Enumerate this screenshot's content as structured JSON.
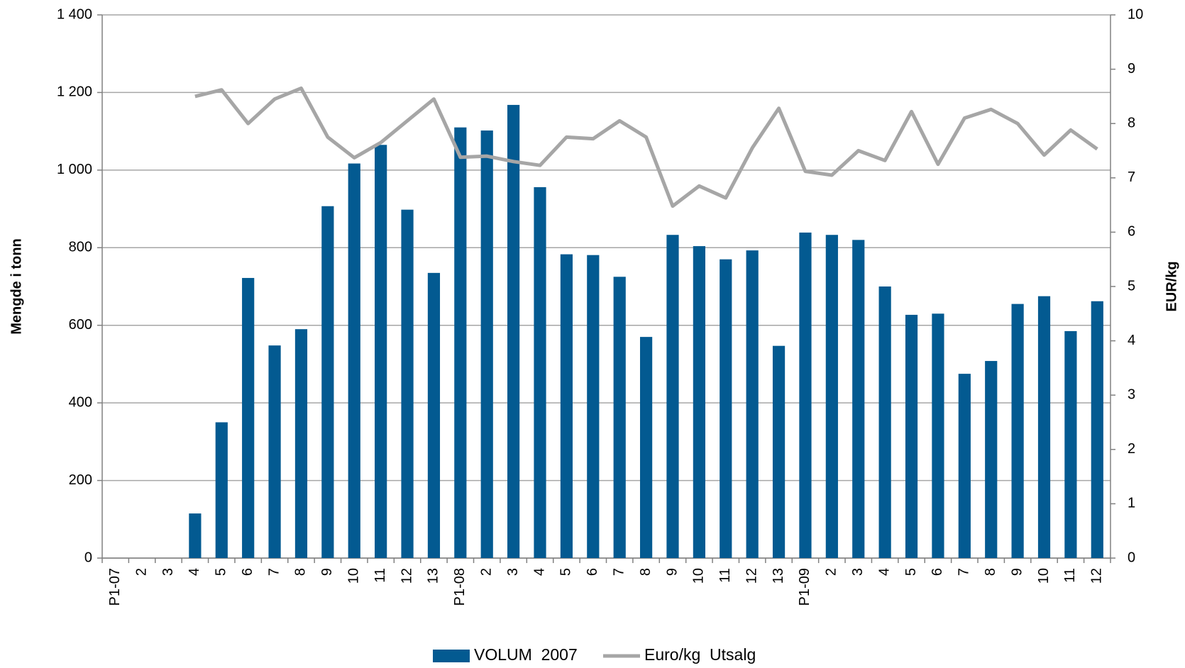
{
  "chart_data": {
    "type": "bar+line",
    "y_label": "Mengde i tonn",
    "y2_label": "EUR/kg",
    "categories": [
      "P1-07",
      "2",
      "3",
      "4",
      "5",
      "6",
      "7",
      "8",
      "9",
      "10",
      "11",
      "12",
      "13",
      "P1-08",
      "2",
      "3",
      "4",
      "5",
      "6",
      "7",
      "8",
      "9",
      "10",
      "11",
      "12",
      "13",
      "P1-09",
      "2",
      "3",
      "4",
      "5",
      "6",
      "7",
      "8",
      "9",
      "10",
      "11",
      "12"
    ],
    "series": [
      {
        "name": "VOLUM  2007",
        "type": "bar",
        "color": "#035a91",
        "values": [
          0,
          0,
          0,
          115,
          350,
          722,
          548,
          590,
          907,
          1017,
          1065,
          898,
          735,
          1110,
          1102,
          1168,
          956,
          783,
          781,
          725,
          570,
          833,
          804,
          770,
          793,
          547,
          839,
          833,
          820,
          700,
          627,
          630,
          475,
          508,
          655,
          675,
          585,
          662
        ]
      },
      {
        "name": "Euro/kg  Utsalg",
        "type": "line",
        "axis": "y2",
        "color": "#a6a6a6",
        "values": [
          null,
          null,
          null,
          8.5,
          8.62,
          8.0,
          8.45,
          8.65,
          7.75,
          7.37,
          7.65,
          8.05,
          8.45,
          7.38,
          7.4,
          7.3,
          7.23,
          7.75,
          7.72,
          8.05,
          7.75,
          6.48,
          6.85,
          6.63,
          7.55,
          8.28,
          7.12,
          7.05,
          7.5,
          7.32,
          8.22,
          7.25,
          8.1,
          8.26,
          8.0,
          7.42,
          7.88,
          7.53
        ]
      }
    ],
    "ylim": [
      0,
      1400
    ],
    "yticks": [
      0,
      200,
      400,
      600,
      800,
      {
        "value": 1000,
        "label": "1 000"
      },
      {
        "value": 1200,
        "label": "1 200"
      },
      {
        "value": 1400,
        "label": "1 400"
      }
    ],
    "y2lim": [
      0,
      10
    ],
    "y2ticks": [
      0,
      1,
      2,
      3,
      4,
      5,
      6,
      7,
      8,
      9,
      10
    ],
    "grid": true,
    "legend": "bottom"
  }
}
